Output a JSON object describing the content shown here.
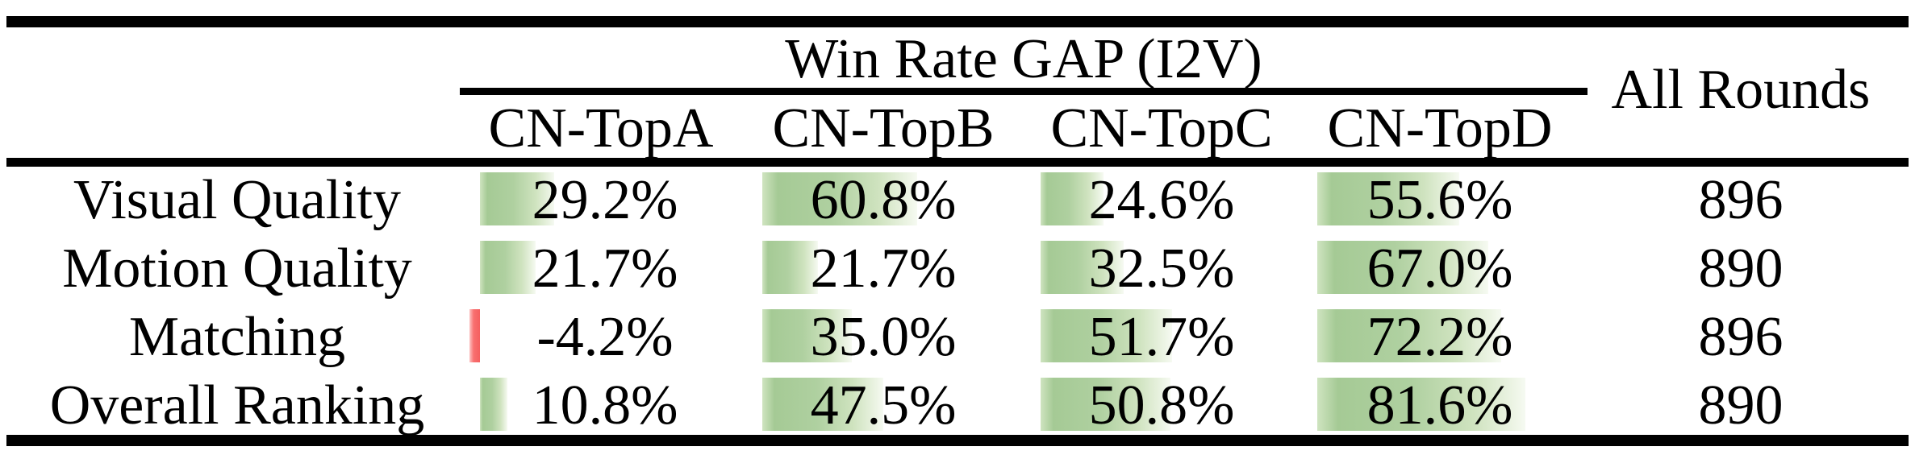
{
  "table": {
    "title": "Win Rate GAP (I2V)",
    "all_rounds_header": "All Rounds",
    "columns": [
      "CN-TopA",
      "CN-TopB",
      "CN-TopC",
      "CN-TopD"
    ],
    "rows": [
      {
        "label": "Visual Quality",
        "values": [
          29.2,
          60.8,
          24.6,
          55.6
        ],
        "display": [
          "29.2%",
          "60.8%",
          "24.6%",
          "55.6%"
        ],
        "all_rounds": "896"
      },
      {
        "label": "Motion Quality",
        "values": [
          21.7,
          21.7,
          32.5,
          67.0
        ],
        "display": [
          "21.7%",
          "21.7%",
          "32.5%",
          "67.0%"
        ],
        "all_rounds": "890"
      },
      {
        "label": "Matching",
        "values": [
          -4.2,
          35.0,
          51.7,
          72.2
        ],
        "display": [
          "-4.2%",
          "35.0%",
          "51.7%",
          "72.2%"
        ],
        "all_rounds": "896"
      },
      {
        "label": "Overall Ranking",
        "values": [
          10.8,
          47.5,
          50.8,
          81.6
        ],
        "display": [
          "10.8%",
          "47.5%",
          "50.8%",
          "81.6%"
        ],
        "all_rounds": "890"
      }
    ],
    "colors": {
      "positive_bar_green": "#a5ca95",
      "positive_bar_fade": "#f6faf2",
      "negative_bar_red": "#f87070",
      "rule_black": "#000000"
    }
  },
  "chart_data": {
    "type": "table",
    "title": "Win Rate GAP (I2V)",
    "categories": [
      "Visual Quality",
      "Motion Quality",
      "Matching",
      "Overall Ranking"
    ],
    "series": [
      {
        "name": "CN-TopA",
        "values": [
          29.2,
          21.7,
          -4.2,
          10.8
        ]
      },
      {
        "name": "CN-TopB",
        "values": [
          60.8,
          21.7,
          35.0,
          47.5
        ]
      },
      {
        "name": "CN-TopC",
        "values": [
          24.6,
          32.5,
          51.7,
          50.8
        ]
      },
      {
        "name": "CN-TopD",
        "values": [
          55.6,
          67.0,
          72.2,
          81.6
        ]
      }
    ],
    "all_rounds": [
      896,
      890,
      896,
      890
    ],
    "unit": "percent",
    "bar_style": "in-cell data bars, green positive / red negative"
  }
}
